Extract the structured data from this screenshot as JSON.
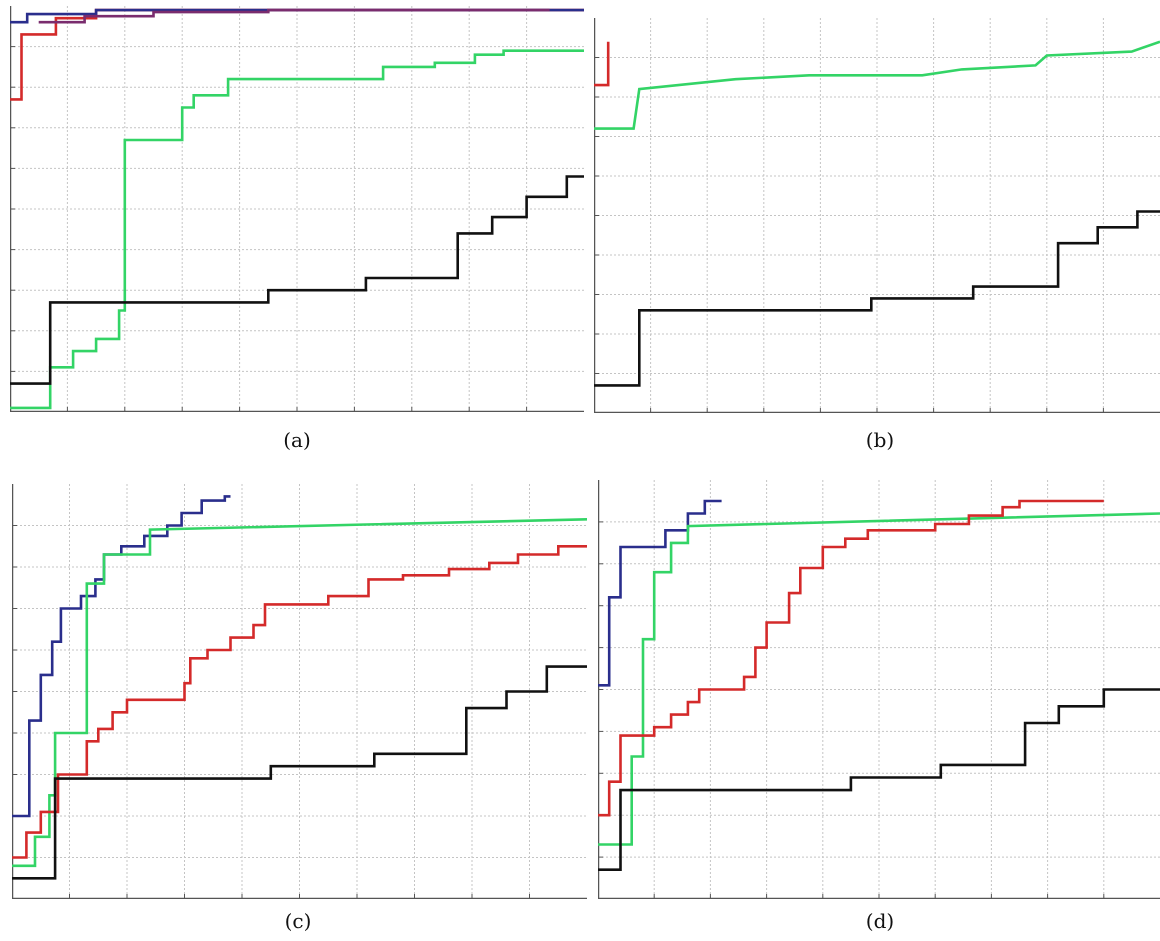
{
  "colors": {
    "red": "#d42a2a",
    "blue": "#2a2e8c",
    "purple": "#7a2c6e",
    "green": "#33d466",
    "black": "#111111",
    "grid": "#c4c4c4",
    "axis": "#555555"
  },
  "chart_data": [
    {
      "type": "line",
      "caption": "(a)",
      "xlim": [
        0,
        10
      ],
      "ylim": [
        0,
        10
      ],
      "grid": true,
      "step": true,
      "series": [
        {
          "color": "red",
          "points": [
            [
              0,
              7.7
            ],
            [
              0.2,
              7.7
            ],
            [
              0.2,
              9.3
            ],
            [
              0.8,
              9.3
            ],
            [
              0.8,
              9.7
            ],
            [
              1.5,
              9.7
            ],
            [
              1.5,
              9.9
            ],
            [
              10,
              9.9
            ]
          ]
        },
        {
          "color": "blue",
          "points": [
            [
              0,
              9.6
            ],
            [
              0.3,
              9.6
            ],
            [
              0.3,
              9.8
            ],
            [
              1.5,
              9.8
            ],
            [
              1.5,
              9.9
            ],
            [
              10,
              9.9
            ]
          ]
        },
        {
          "color": "purple",
          "points": [
            [
              0.5,
              9.6
            ],
            [
              1.3,
              9.6
            ],
            [
              1.3,
              9.75
            ],
            [
              2.5,
              9.75
            ],
            [
              2.5,
              9.85
            ],
            [
              4.5,
              9.85
            ],
            [
              4.5,
              9.9
            ],
            [
              9.4,
              9.9
            ]
          ]
        },
        {
          "color": "green",
          "points": [
            [
              0,
              0.1
            ],
            [
              0.7,
              0.1
            ],
            [
              0.7,
              1.1
            ],
            [
              1.1,
              1.1
            ],
            [
              1.1,
              1.5
            ],
            [
              1.5,
              1.5
            ],
            [
              1.5,
              1.8
            ],
            [
              1.9,
              1.8
            ],
            [
              1.9,
              2.5
            ],
            [
              2,
              2.5
            ],
            [
              2,
              6.7
            ],
            [
              3,
              6.7
            ],
            [
              3,
              7.5
            ],
            [
              3.2,
              7.5
            ],
            [
              3.2,
              7.8
            ],
            [
              3.8,
              7.8
            ],
            [
              3.8,
              8.2
            ],
            [
              6.5,
              8.2
            ],
            [
              6.5,
              8.5
            ],
            [
              7.4,
              8.5
            ],
            [
              7.4,
              8.6
            ],
            [
              8.1,
              8.6
            ],
            [
              8.1,
              8.8
            ],
            [
              8.6,
              8.8
            ],
            [
              8.6,
              8.9
            ],
            [
              10,
              8.9
            ]
          ]
        },
        {
          "color": "black",
          "points": [
            [
              0,
              0.7
            ],
            [
              0.7,
              0.7
            ],
            [
              0.7,
              2.7
            ],
            [
              4.5,
              2.7
            ],
            [
              4.5,
              3
            ],
            [
              6.2,
              3
            ],
            [
              6.2,
              3.3
            ],
            [
              7.8,
              3.3
            ],
            [
              7.8,
              4.4
            ],
            [
              8.4,
              4.4
            ],
            [
              8.4,
              4.8
            ],
            [
              9,
              4.8
            ],
            [
              9,
              5.3
            ],
            [
              9.7,
              5.3
            ],
            [
              9.7,
              5.8
            ],
            [
              10,
              5.8
            ]
          ]
        }
      ]
    },
    {
      "type": "line",
      "caption": "(b)",
      "xlim": [
        0,
        10
      ],
      "ylim": [
        0,
        10
      ],
      "grid": true,
      "step": true,
      "series": [
        {
          "color": "red",
          "points": [
            [
              0,
              8.3
            ],
            [
              0.25,
              8.3
            ],
            [
              0.25,
              9.4
            ]
          ]
        },
        {
          "color": "green",
          "points": [
            [
              0,
              7.2
            ],
            [
              0.7,
              7.2
            ],
            [
              0.8,
              8.2
            ],
            [
              2.5,
              8.45
            ],
            [
              3.8,
              8.55
            ],
            [
              5.8,
              8.55
            ],
            [
              6.5,
              8.7
            ],
            [
              7.8,
              8.8
            ],
            [
              8,
              9.05
            ],
            [
              9.5,
              9.15
            ],
            [
              10,
              9.4
            ]
          ]
        },
        {
          "color": "black",
          "points": [
            [
              0,
              0.7
            ],
            [
              0.8,
              0.7
            ],
            [
              0.8,
              2.6
            ],
            [
              4.9,
              2.6
            ],
            [
              4.9,
              2.9
            ],
            [
              6.7,
              2.9
            ],
            [
              6.7,
              3.2
            ],
            [
              8.2,
              3.2
            ],
            [
              8.2,
              4.3
            ],
            [
              8.9,
              4.3
            ],
            [
              8.9,
              4.7
            ],
            [
              9.6,
              4.7
            ],
            [
              9.6,
              5.1
            ],
            [
              10,
              5.1
            ]
          ]
        }
      ]
    },
    {
      "type": "line",
      "caption": "(c)",
      "xlim": [
        0,
        10
      ],
      "ylim": [
        0,
        10
      ],
      "grid": true,
      "step": true,
      "series": [
        {
          "color": "blue",
          "points": [
            [
              0,
              2
            ],
            [
              0.3,
              2
            ],
            [
              0.3,
              4.3
            ],
            [
              0.5,
              4.3
            ],
            [
              0.5,
              5.4
            ],
            [
              0.7,
              5.4
            ],
            [
              0.7,
              6.2
            ],
            [
              0.85,
              6.2
            ],
            [
              0.85,
              7
            ],
            [
              1.2,
              7
            ],
            [
              1.2,
              7.3
            ],
            [
              1.45,
              7.3
            ],
            [
              1.45,
              7.7
            ],
            [
              1.6,
              7.7
            ],
            [
              1.6,
              8.3
            ],
            [
              1.9,
              8.3
            ],
            [
              1.9,
              8.5
            ],
            [
              2.3,
              8.5
            ],
            [
              2.3,
              8.75
            ],
            [
              2.7,
              8.75
            ],
            [
              2.7,
              9.0
            ],
            [
              2.95,
              9.0
            ],
            [
              2.95,
              9.3
            ],
            [
              3.3,
              9.3
            ],
            [
              3.3,
              9.6
            ],
            [
              3.7,
              9.6
            ],
            [
              3.7,
              9.7
            ],
            [
              3.8,
              9.7
            ]
          ]
        },
        {
          "color": "green",
          "points": [
            [
              0,
              0.8
            ],
            [
              0.4,
              0.8
            ],
            [
              0.4,
              1.5
            ],
            [
              0.65,
              1.5
            ],
            [
              0.65,
              2.5
            ],
            [
              0.75,
              2.5
            ],
            [
              0.75,
              4.0
            ],
            [
              1.3,
              4.0
            ],
            [
              1.3,
              7.6
            ],
            [
              1.6,
              7.6
            ],
            [
              1.6,
              8.3
            ],
            [
              2.4,
              8.3
            ],
            [
              2.4,
              8.9
            ],
            [
              10,
              9.15
            ]
          ]
        },
        {
          "color": "red",
          "points": [
            [
              0,
              1.0
            ],
            [
              0.25,
              1.0
            ],
            [
              0.25,
              1.6
            ],
            [
              0.5,
              1.6
            ],
            [
              0.5,
              2.1
            ],
            [
              0.8,
              2.1
            ],
            [
              0.8,
              3.0
            ],
            [
              1.3,
              3.0
            ],
            [
              1.3,
              3.8
            ],
            [
              1.5,
              3.8
            ],
            [
              1.5,
              4.1
            ],
            [
              1.75,
              4.1
            ],
            [
              1.75,
              4.5
            ],
            [
              2.0,
              4.5
            ],
            [
              2.0,
              4.8
            ],
            [
              3,
              4.8
            ],
            [
              3,
              5.2
            ],
            [
              3.1,
              5.2
            ],
            [
              3.1,
              5.8
            ],
            [
              3.4,
              5.8
            ],
            [
              3.4,
              6.0
            ],
            [
              3.8,
              6.0
            ],
            [
              3.8,
              6.3
            ],
            [
              4.2,
              6.3
            ],
            [
              4.2,
              6.6
            ],
            [
              4.4,
              6.6
            ],
            [
              4.4,
              7.1
            ],
            [
              5.5,
              7.1
            ],
            [
              5.5,
              7.3
            ],
            [
              6.2,
              7.3
            ],
            [
              6.2,
              7.7
            ],
            [
              6.8,
              7.7
            ],
            [
              6.8,
              7.8
            ],
            [
              7.6,
              7.8
            ],
            [
              7.6,
              7.95
            ],
            [
              8.3,
              7.95
            ],
            [
              8.3,
              8.1
            ],
            [
              8.8,
              8.1
            ],
            [
              8.8,
              8.3
            ],
            [
              9.5,
              8.3
            ],
            [
              9.5,
              8.5
            ],
            [
              10,
              8.5
            ]
          ]
        },
        {
          "color": "black",
          "points": [
            [
              0,
              0.5
            ],
            [
              0.75,
              0.5
            ],
            [
              0.75,
              2.9
            ],
            [
              4.5,
              2.9
            ],
            [
              4.5,
              3.2
            ],
            [
              6.3,
              3.2
            ],
            [
              6.3,
              3.5
            ],
            [
              7.9,
              3.5
            ],
            [
              7.9,
              4.6
            ],
            [
              8.6,
              4.6
            ],
            [
              8.6,
              5
            ],
            [
              9.3,
              5
            ],
            [
              9.3,
              5.6
            ],
            [
              10,
              5.6
            ]
          ]
        }
      ]
    },
    {
      "type": "line",
      "caption": "(d)",
      "xlim": [
        0,
        10
      ],
      "ylim": [
        0,
        10
      ],
      "grid": true,
      "step": true,
      "series": [
        {
          "color": "blue",
          "points": [
            [
              0,
              5.1
            ],
            [
              0.2,
              5.1
            ],
            [
              0.2,
              7.2
            ],
            [
              0.4,
              7.2
            ],
            [
              0.4,
              8.4
            ],
            [
              1.2,
              8.4
            ],
            [
              1.2,
              8.8
            ],
            [
              1.6,
              8.8
            ],
            [
              1.6,
              9.2
            ],
            [
              1.9,
              9.2
            ],
            [
              1.9,
              9.5
            ],
            [
              2.2,
              9.5
            ]
          ]
        },
        {
          "color": "green",
          "points": [
            [
              0,
              1.3
            ],
            [
              0.6,
              1.3
            ],
            [
              0.6,
              3.4
            ],
            [
              0.8,
              3.4
            ],
            [
              0.8,
              6.2
            ],
            [
              1.0,
              6.2
            ],
            [
              1.0,
              7.8
            ],
            [
              1.3,
              7.8
            ],
            [
              1.3,
              8.5
            ],
            [
              1.6,
              8.5
            ],
            [
              1.6,
              8.9
            ],
            [
              10,
              9.2
            ]
          ]
        },
        {
          "color": "red",
          "points": [
            [
              0,
              2.0
            ],
            [
              0.2,
              2.0
            ],
            [
              0.2,
              2.8
            ],
            [
              0.4,
              2.8
            ],
            [
              0.4,
              3.9
            ],
            [
              1.0,
              3.9
            ],
            [
              1.0,
              4.1
            ],
            [
              1.3,
              4.1
            ],
            [
              1.3,
              4.4
            ],
            [
              1.6,
              4.4
            ],
            [
              1.6,
              4.7
            ],
            [
              1.8,
              4.7
            ],
            [
              1.8,
              5.0
            ],
            [
              2.6,
              5.0
            ],
            [
              2.6,
              5.3
            ],
            [
              2.8,
              5.3
            ],
            [
              2.8,
              6.0
            ],
            [
              3.0,
              6.0
            ],
            [
              3.0,
              6.6
            ],
            [
              3.4,
              6.6
            ],
            [
              3.4,
              7.3
            ],
            [
              3.6,
              7.3
            ],
            [
              3.6,
              7.9
            ],
            [
              4.0,
              7.9
            ],
            [
              4.0,
              8.4
            ],
            [
              4.4,
              8.4
            ],
            [
              4.4,
              8.6
            ],
            [
              4.8,
              8.6
            ],
            [
              4.8,
              8.8
            ],
            [
              6,
              8.8
            ],
            [
              6,
              8.95
            ],
            [
              6.6,
              8.95
            ],
            [
              6.6,
              9.15
            ],
            [
              7.2,
              9.15
            ],
            [
              7.2,
              9.35
            ],
            [
              7.5,
              9.35
            ],
            [
              7.5,
              9.5
            ],
            [
              9.0,
              9.5
            ]
          ]
        },
        {
          "color": "black",
          "points": [
            [
              0,
              0.7
            ],
            [
              0.4,
              0.7
            ],
            [
              0.4,
              2.6
            ],
            [
              4.5,
              2.6
            ],
            [
              4.5,
              2.9
            ],
            [
              6.1,
              2.9
            ],
            [
              6.1,
              3.2
            ],
            [
              7.6,
              3.2
            ],
            [
              7.6,
              4.2
            ],
            [
              8.2,
              4.2
            ],
            [
              8.2,
              4.6
            ],
            [
              9.0,
              4.6
            ],
            [
              9.0,
              5.0
            ],
            [
              10,
              5.0
            ]
          ]
        }
      ]
    }
  ]
}
